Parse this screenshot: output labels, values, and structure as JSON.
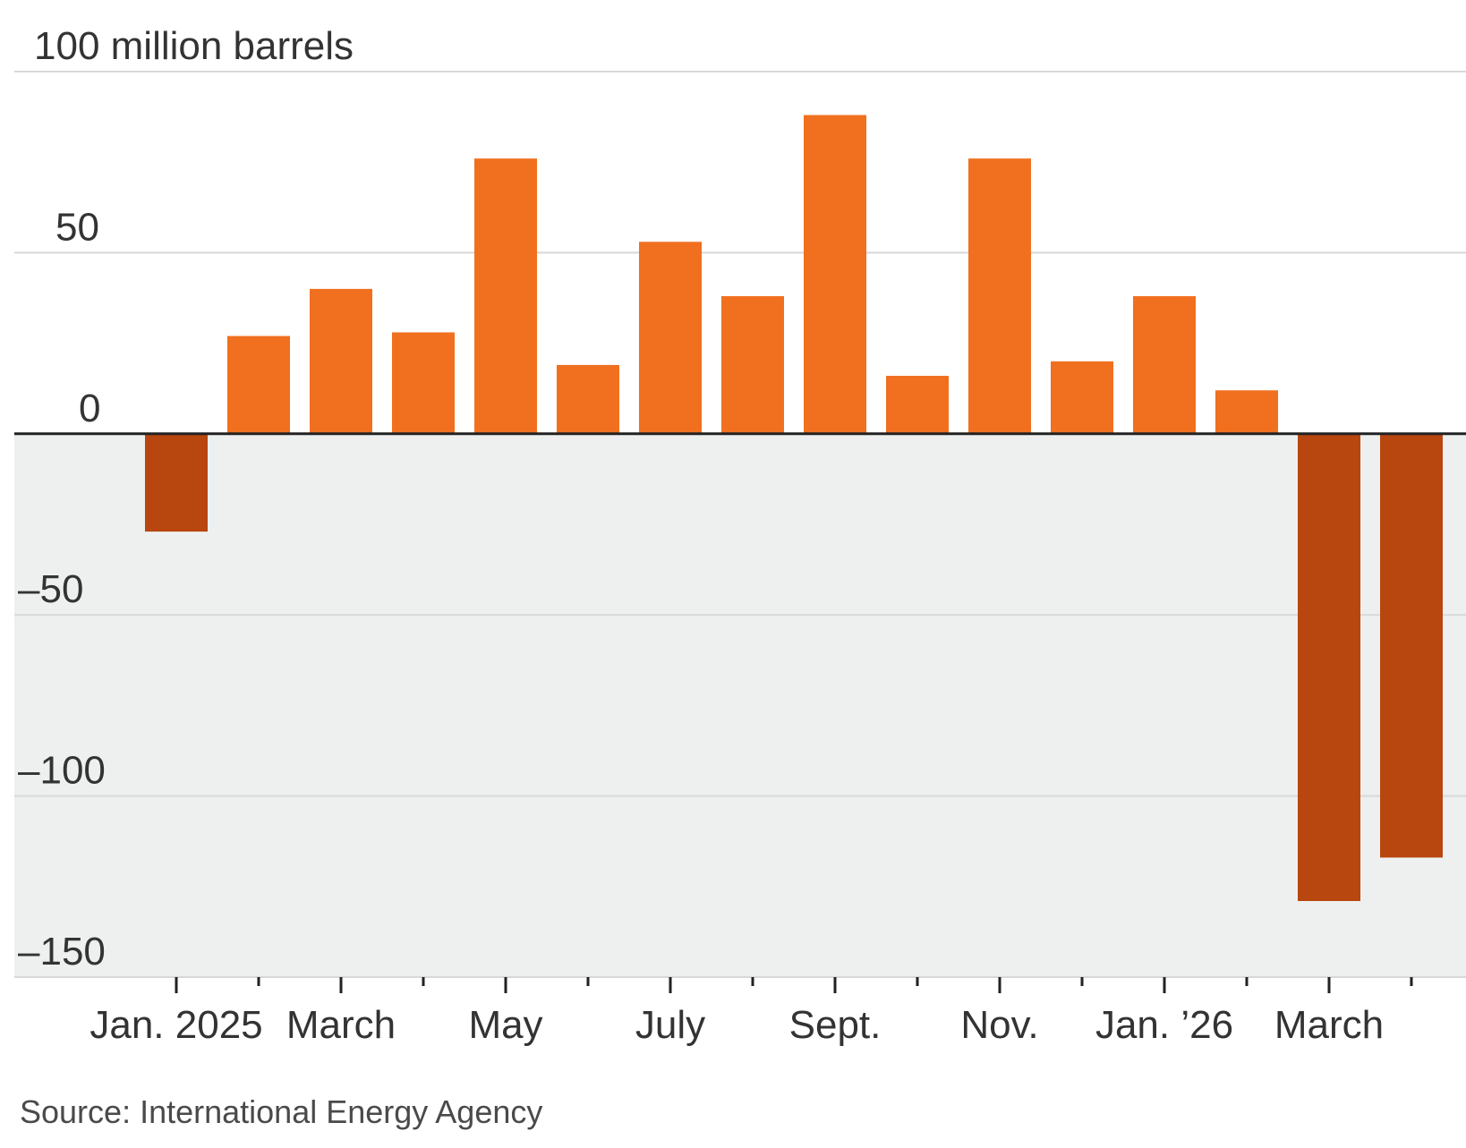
{
  "chart_data": {
    "type": "bar",
    "unit_label": "100 million barrels",
    "title": "",
    "xlabel": "",
    "ylabel": "",
    "ylim": [
      -150,
      100
    ],
    "y_ticks": [
      {
        "value": 100,
        "label": "100 million barrels"
      },
      {
        "value": 50,
        "label": "50"
      },
      {
        "value": 0,
        "label": "0"
      },
      {
        "value": -50,
        "label": "–50"
      },
      {
        "value": -100,
        "label": "–100"
      },
      {
        "value": -150,
        "label": "–150"
      }
    ],
    "categories": [
      "Jan. 2025",
      "Feb. 2025",
      "March 2025",
      "April 2025",
      "May 2025",
      "June 2025",
      "July 2025",
      "Aug. 2025",
      "Sept. 2025",
      "Oct. 2025",
      "Nov. 2025",
      "Dec. 2025",
      "Jan. 2026",
      "Feb. 2026",
      "March 2026",
      "April 2026"
    ],
    "x_tick_labels": [
      "Jan. 2025",
      "",
      "March",
      "",
      "May",
      "",
      "July",
      "",
      "Sept.",
      "",
      "Nov.",
      "",
      "Jan. ’26",
      "",
      "March",
      ""
    ],
    "values": [
      -27,
      27,
      40,
      28,
      76,
      19,
      53,
      38,
      88,
      16,
      76,
      20,
      38,
      12,
      -129,
      -117
    ],
    "colors": {
      "positive": "#f07020",
      "negative": "#b8460f",
      "negative_region": "#eef0f0",
      "gridline": "#d8d8d8",
      "zero_line": "#222222",
      "text": "#333333"
    },
    "grid": true,
    "legend": "none",
    "source": "Source: International Energy Agency"
  }
}
